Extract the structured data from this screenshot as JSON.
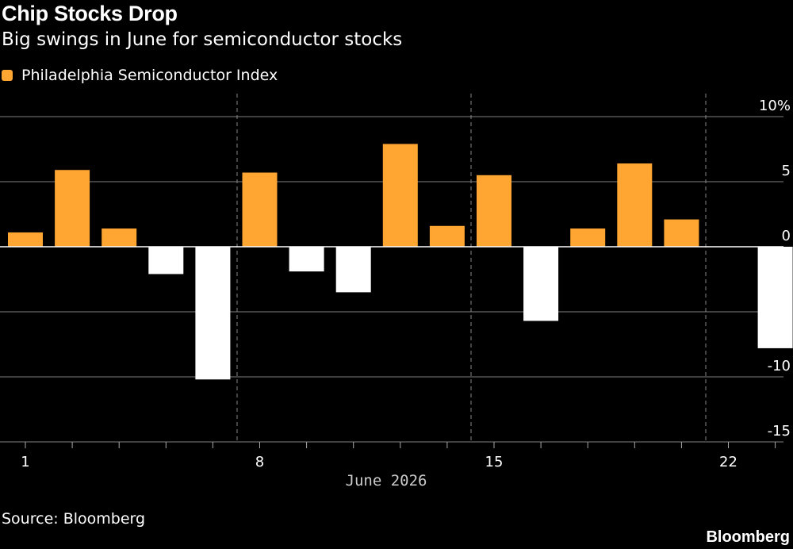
{
  "header": {
    "title": "Chip Stocks Drop",
    "subtitle": "Big swings in June for semiconductor stocks"
  },
  "footer": {
    "source": "Source: Bloomberg",
    "brand": "Bloomberg"
  },
  "colors": {
    "positive": "#ffa532",
    "negative": "#ffffff",
    "grid": "#666666",
    "background": "#000000"
  },
  "chart_data": {
    "type": "bar",
    "xlabel": "June 2026",
    "ylabel": "",
    "y_unit": "%",
    "ylim": [
      -15,
      10
    ],
    "yticks": [
      10,
      5,
      0,
      -5,
      -10,
      -15
    ],
    "ytick_labels": [
      "10%",
      "5",
      "0",
      "-5",
      "-10",
      "-15"
    ],
    "grid": true,
    "legend_position": "top-left",
    "series": [
      {
        "name": "Philadelphia Semiconductor Index",
        "categories": [
          "1",
          "2",
          "3",
          "4",
          "5",
          "8",
          "9",
          "10",
          "11",
          "12",
          "15",
          "16",
          "17",
          "18",
          "19",
          "22",
          "23"
        ],
        "values": [
          1.1,
          5.9,
          1.4,
          -2.1,
          -10.2,
          5.7,
          -1.9,
          -3.5,
          7.9,
          1.6,
          5.5,
          -5.7,
          1.4,
          6.4,
          2.1,
          null,
          -7.8
        ]
      }
    ],
    "xticks": [
      "1",
      "8",
      "15",
      "22"
    ],
    "week_separators_after": [
      "5",
      "12",
      "19"
    ]
  }
}
